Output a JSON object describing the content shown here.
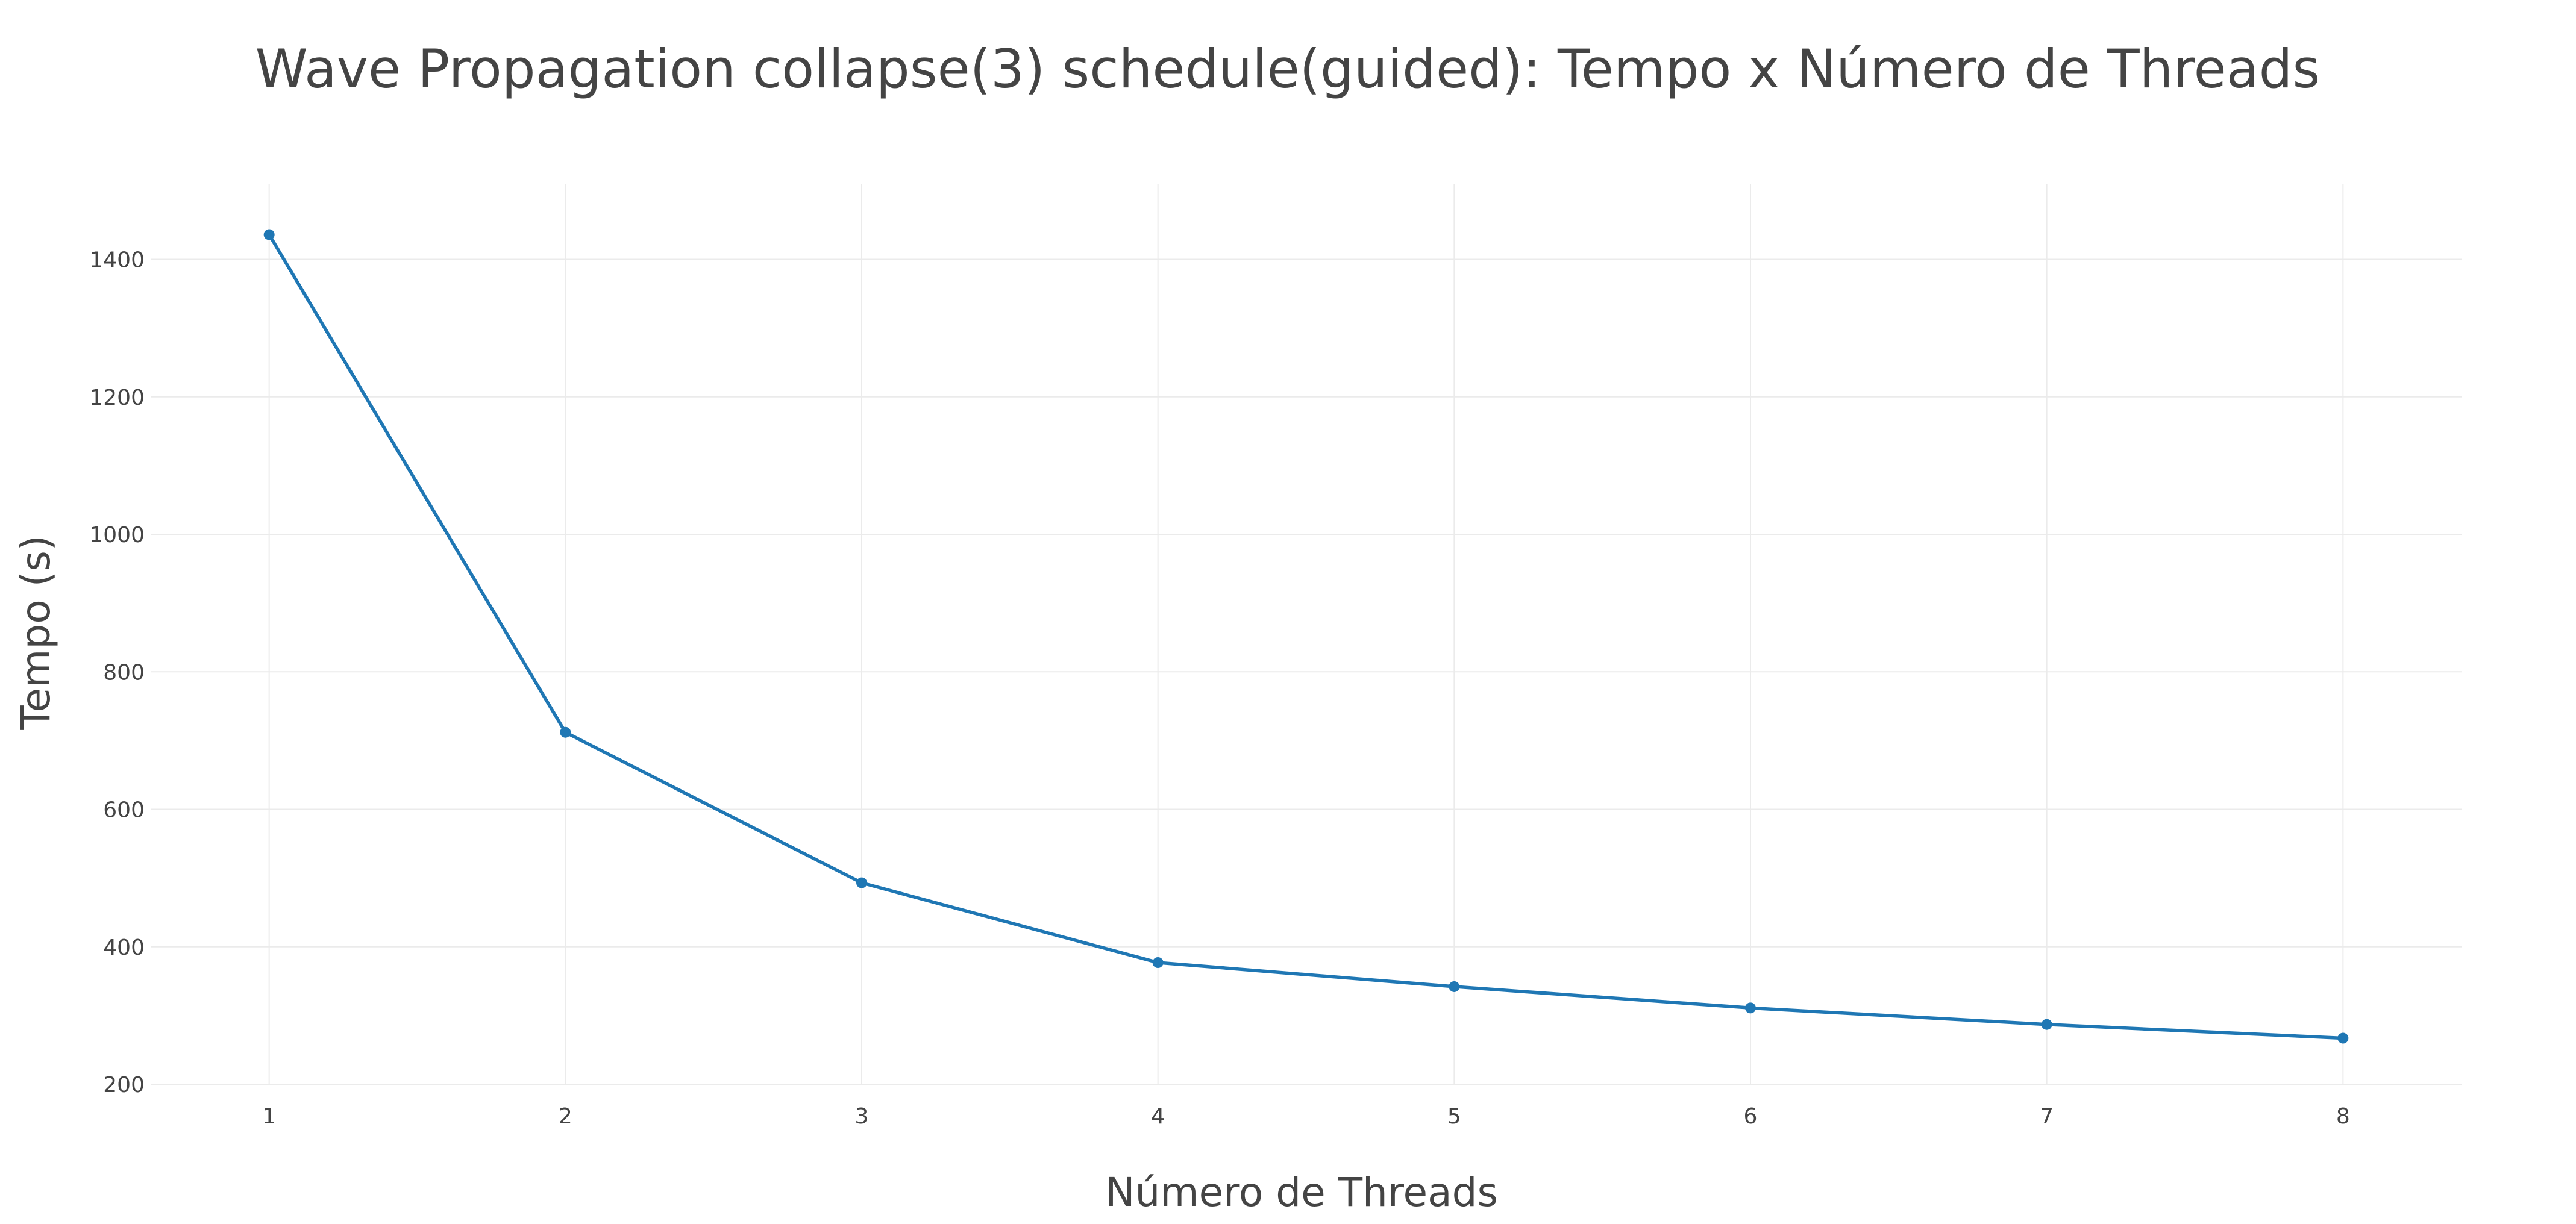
{
  "chart_data": {
    "type": "line",
    "title": "Wave Propagation collapse(3) schedule(guided): Tempo x Número de Threads",
    "xlabel": "Número de Threads",
    "ylabel": "Tempo (s)",
    "x": [
      1,
      2,
      3,
      4,
      5,
      6,
      7,
      8
    ],
    "x_ticks": [
      "1",
      "2",
      "3",
      "4",
      "5",
      "6",
      "7",
      "8"
    ],
    "xlim": [
      0.6,
      8.4
    ],
    "y_ticks": [
      "200",
      "400",
      "600",
      "800",
      "1000",
      "1200",
      "1400"
    ],
    "ylim": [
      200,
      1510
    ],
    "grid": true,
    "legend": false,
    "series": [
      {
        "values": [
          1436,
          712,
          493,
          377,
          342,
          311,
          287,
          267
        ],
        "color": "#1f77b4"
      }
    ]
  }
}
